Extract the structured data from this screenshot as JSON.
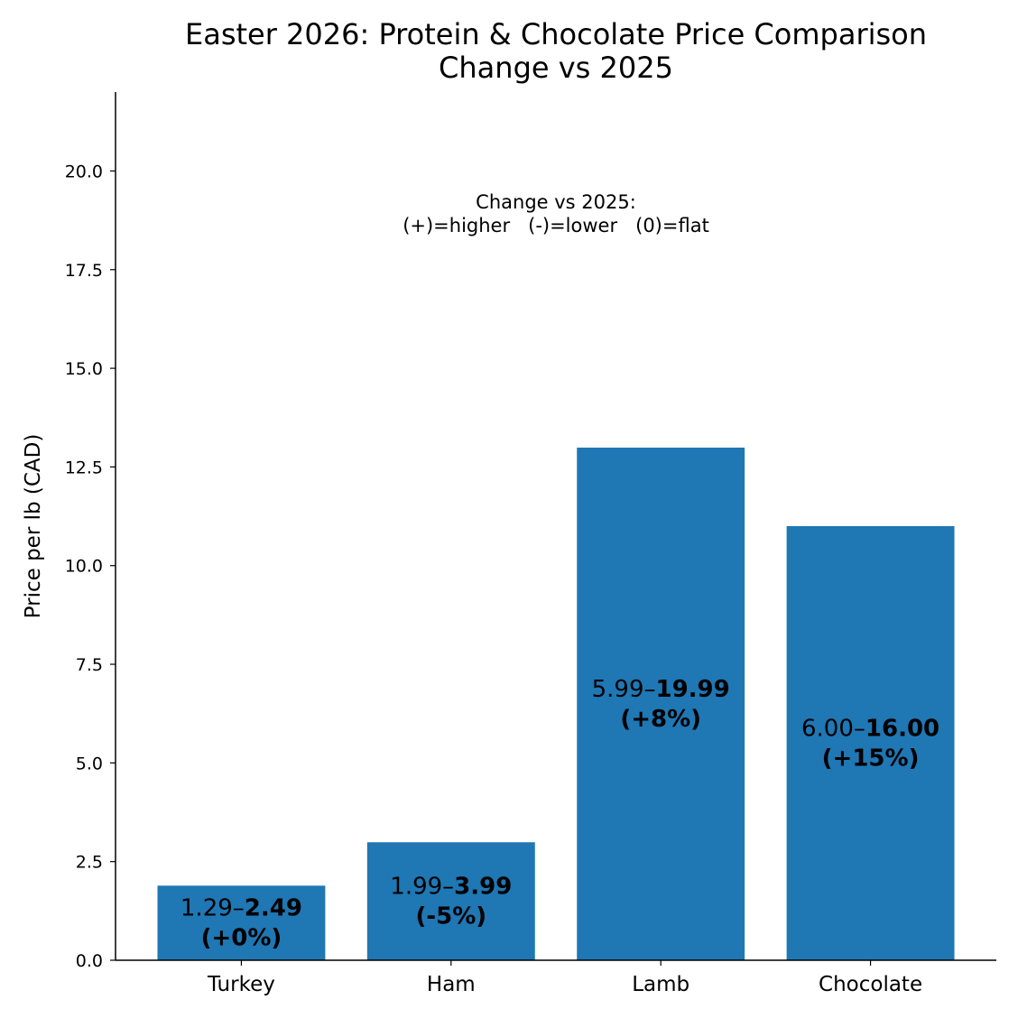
{
  "chart_data": {
    "type": "bar",
    "title": "Easter 2026: Protein & Chocolate Price Comparison",
    "subtitle": "Change vs 2025",
    "xlabel": "",
    "ylabel": "Price per lb (CAD)",
    "ylim": [
      0,
      22
    ],
    "yticks": [
      0,
      2.5,
      5,
      7.5,
      10,
      12.5,
      15,
      17.5,
      20
    ],
    "ytick_labels": [
      "0.0",
      "2.5",
      "5.0",
      "7.5",
      "10.0",
      "12.5",
      "15.0",
      "17.5",
      "20.0"
    ],
    "grid": false,
    "bar_color": "#1f77b4",
    "categories": [
      "Turkey",
      "Ham",
      "Lamb",
      "Chocolate"
    ],
    "values": [
      1.89,
      2.99,
      12.99,
      11.0
    ],
    "bar_labels": [
      {
        "low": "1.29–",
        "high": "2.49",
        "change": "(+0%)"
      },
      {
        "low": "1.99–",
        "high": "3.99",
        "change": "(-5%)"
      },
      {
        "low": "5.99–",
        "high": "19.99",
        "change": "(+8%)"
      },
      {
        "low": "6.00–",
        "high": "16.00",
        "change": "(+15%)"
      }
    ],
    "annotation": {
      "line1": "Change vs 2025:",
      "line2": "(+)=higher   (-)=lower   (0)=flat"
    }
  }
}
